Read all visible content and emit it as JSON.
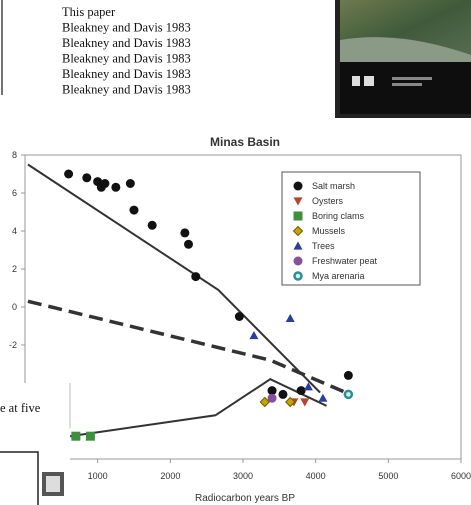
{
  "source_list": [
    "This paper",
    "Bleakney and Davis 1983",
    "Bleakney and Davis 1983",
    "Bleakney and Davis 1983",
    "Bleakney and Davis 1983",
    "Bleakney and Davis 1983"
  ],
  "fragment_text": "e at five",
  "chart_data": {
    "type": "scatter",
    "title": "Minas Basin",
    "x_label": "Radiocarbon years BP",
    "xlim": [
      0,
      6000
    ],
    "xticks": [
      1000,
      2000,
      3000,
      4000,
      5000,
      6000
    ],
    "ylim": [
      -8,
      8
    ],
    "yticks": [
      -2,
      0,
      2,
      4,
      6,
      8
    ],
    "legend": "upper right",
    "series": [
      {
        "name": "Salt marsh",
        "color": "#111111",
        "marker": "circle",
        "x": [
          600,
          850,
          1000,
          1050,
          1100,
          1250,
          1450,
          1500,
          1750,
          2200,
          2250,
          2350,
          2950,
          3400,
          3550,
          3800,
          4450
        ],
        "values": [
          7.0,
          6.8,
          6.6,
          6.3,
          6.5,
          6.3,
          6.5,
          5.1,
          4.3,
          3.9,
          3.3,
          1.6,
          -0.5,
          -4.4,
          -4.6,
          -4.4,
          -3.6
        ]
      },
      {
        "name": "Oysters",
        "color": "#b5452f",
        "marker": "triangle-down",
        "x": [
          3700,
          3850
        ],
        "values": [
          -5.0,
          -5.0
        ]
      },
      {
        "name": "Boring clams",
        "color": "#3f8f3f",
        "marker": "square",
        "x": [
          700,
          900
        ],
        "values": [
          -6.8,
          -6.8
        ]
      },
      {
        "name": "Mussels",
        "color": "#c9a400",
        "marker": "diamond",
        "x": [
          3300,
          3650
        ],
        "values": [
          -5.0,
          -5.0
        ]
      },
      {
        "name": "Trees",
        "color": "#2b3d9a",
        "marker": "triangle",
        "x": [
          3150,
          3650,
          3900,
          4100
        ],
        "values": [
          -1.5,
          -0.6,
          -4.2,
          -4.8
        ]
      },
      {
        "name": "Freshwater peat",
        "color": "#8a4f9c",
        "marker": "circle",
        "x": [
          3400
        ],
        "values": [
          -4.8
        ]
      },
      {
        "name": "Mya arenaria",
        "color": "#2f8c95",
        "marker": "ring",
        "x": [
          4450
        ],
        "values": [
          -4.6
        ]
      }
    ],
    "curves": [
      {
        "style": "solid",
        "x": [
          40,
          2660,
          4060
        ],
        "values": [
          7.5,
          0.9,
          -4.5
        ]
      },
      {
        "style": "dashed",
        "x": [
          40,
          3375,
          4475
        ],
        "values": [
          0.3,
          -2.8,
          -4.6
        ]
      },
      {
        "style": "solid",
        "x": [
          620,
          2620,
          3375,
          4150
        ],
        "values": [
          -6.8,
          -5.7,
          -3.8,
          -5.2
        ]
      }
    ]
  }
}
